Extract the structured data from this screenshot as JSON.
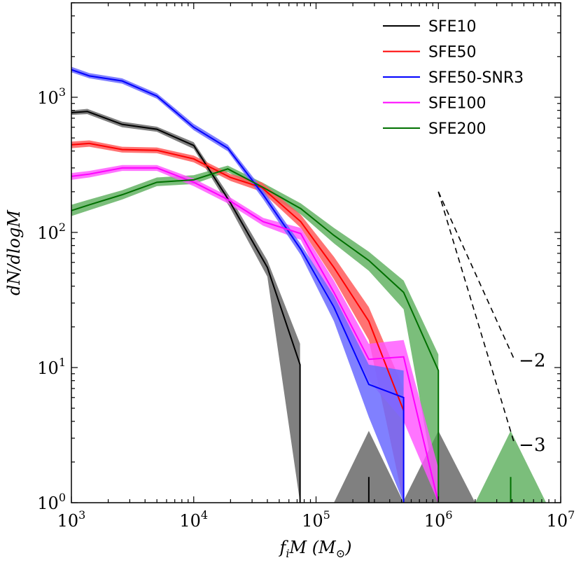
{
  "chart_data": {
    "type": "line",
    "title": "",
    "xlabel": "f_iM (M_⊙)",
    "ylabel": "dN/dlogM",
    "xscale": "log",
    "yscale": "log",
    "xlim": [
      1000,
      10000000
    ],
    "ylim": [
      1,
      5000
    ],
    "x_ticks": [
      {
        "value": 1000,
        "base": "10",
        "exp": "3"
      },
      {
        "value": 10000,
        "base": "10",
        "exp": "4"
      },
      {
        "value": 100000,
        "base": "10",
        "exp": "5"
      },
      {
        "value": 1000000,
        "base": "10",
        "exp": "6"
      },
      {
        "value": 10000000,
        "base": "10",
        "exp": "7"
      }
    ],
    "y_ticks": [
      {
        "value": 1,
        "base": "10",
        "exp": "0"
      },
      {
        "value": 10,
        "base": "10",
        "exp": "1"
      },
      {
        "value": 100,
        "base": "10",
        "exp": "2"
      },
      {
        "value": 1000,
        "base": "10",
        "exp": "3"
      }
    ],
    "legend_position": "top-right",
    "series": [
      {
        "name": "SFE10",
        "color": "#000000",
        "band_color": "#808080",
        "band_opacity": 1.0,
        "x": [
          1000,
          1350,
          2600,
          5000,
          10000,
          20000,
          40000,
          74000
        ],
        "values": [
          770,
          785,
          630,
          580,
          440,
          165,
          55,
          10.5
        ],
        "band_upper": [
          800,
          820,
          660,
          605,
          465,
          180,
          62,
          15
        ],
        "band_lower": [
          740,
          750,
          600,
          555,
          415,
          150,
          47,
          1
        ],
        "drop_to_floor_at": 74000,
        "extra_bands": [
          {
            "x": [
              140000,
              270000,
              520000
            ],
            "upper": [
              1,
              3.4,
              1
            ],
            "lower": [
              1,
              1,
              1
            ]
          },
          {
            "x": [
              510000,
              1000000,
              2000000
            ],
            "upper": [
              1,
              3.4,
              1
            ],
            "lower": [
              1,
              1,
              1
            ]
          }
        ],
        "spikes": [
          {
            "x": 270000,
            "top": 1.55
          }
        ]
      },
      {
        "name": "SFE50",
        "color": "#ff0000",
        "band_color": "#ff5a5a",
        "band_opacity": 0.85,
        "x": [
          1000,
          1400,
          2600,
          5000,
          10000,
          20000,
          36000,
          75000,
          140000,
          270000,
          520000
        ],
        "values": [
          445,
          455,
          410,
          405,
          350,
          255,
          215,
          120,
          55,
          22,
          4.8
        ],
        "band_upper": [
          470,
          480,
          430,
          425,
          370,
          270,
          235,
          135,
          66,
          28,
          7
        ],
        "band_lower": [
          420,
          430,
          390,
          385,
          330,
          240,
          200,
          108,
          45,
          16,
          1
        ]
      },
      {
        "name": "SFE50-SNR3",
        "color": "#0000ff",
        "band_color": "#6a6aff",
        "band_opacity": 0.85,
        "x": [
          1000,
          1400,
          2600,
          5000,
          10000,
          19000,
          37000,
          75000,
          140000,
          270000,
          520000
        ],
        "values": [
          1600,
          1440,
          1320,
          1020,
          600,
          420,
          190,
          75,
          28,
          7.5,
          6
        ],
        "band_upper": [
          1680,
          1510,
          1380,
          1070,
          635,
          445,
          205,
          82,
          34,
          10.5,
          9.5
        ],
        "band_lower": [
          1530,
          1380,
          1260,
          975,
          570,
          398,
          176,
          68,
          22,
          4.3,
          1
        ],
        "drop_to_floor_at": 520000
      },
      {
        "name": "SFE100",
        "color": "#ff00ff",
        "band_color": "#ff55ff",
        "band_opacity": 0.82,
        "x": [
          1000,
          1400,
          2600,
          5000,
          10000,
          19000,
          37000,
          75000,
          140000,
          270000,
          520000,
          1000000
        ],
        "values": [
          260,
          270,
          300,
          300,
          235,
          175,
          120,
          98,
          36,
          11.5,
          12,
          1
        ],
        "band_upper": [
          275,
          285,
          315,
          315,
          250,
          186,
          128,
          108,
          44,
          15,
          16,
          1.8
        ],
        "band_lower": [
          245,
          255,
          285,
          285,
          220,
          164,
          112,
          88,
          28,
          8,
          4,
          1
        ],
        "drop_to_floor_at": 1000000
      },
      {
        "name": "SFE200",
        "color": "#007000",
        "band_color": "#4fa84f",
        "band_opacity": 0.75,
        "x": [
          1000,
          1400,
          2600,
          5000,
          10000,
          19000,
          37000,
          75000,
          140000,
          270000,
          520000,
          1000000
        ],
        "values": [
          145,
          160,
          190,
          235,
          245,
          295,
          215,
          150,
          95,
          62,
          36,
          9.5
        ],
        "band_upper": [
          160,
          175,
          205,
          255,
          265,
          312,
          232,
          164,
          108,
          72,
          44,
          12.5
        ],
        "band_lower": [
          132,
          146,
          175,
          220,
          228,
          280,
          198,
          136,
          83,
          52,
          27,
          1
        ],
        "drop_to_floor_at": 1000000,
        "extra_bands": [
          {
            "x": [
              2000000,
              3900000,
              7600000
            ],
            "upper": [
              1,
              3.4,
              1
            ],
            "lower": [
              1,
              1,
              1
            ]
          }
        ],
        "spikes": [
          {
            "x": 3900000,
            "top": 1.55
          }
        ]
      }
    ],
    "annotations": [
      {
        "label": "−2",
        "slope": -2,
        "x_start": 1000000,
        "y_start": 200,
        "x_end": 4200000
      },
      {
        "label": "−3",
        "slope": -3,
        "x_start": 1000000,
        "y_start": 200,
        "x_end": 4200000
      }
    ]
  }
}
